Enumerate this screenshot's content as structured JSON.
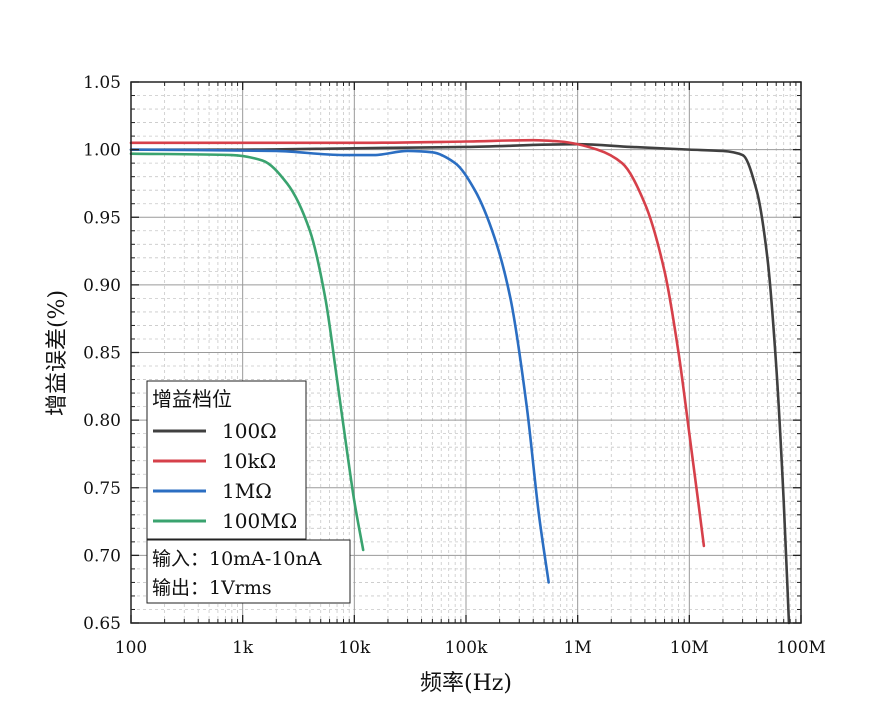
{
  "chart_data": {
    "type": "line",
    "xscale": "log",
    "xlim": [
      100,
      100000000
    ],
    "ylim": [
      0.65,
      1.05
    ],
    "xlabel": "频率(Hz)",
    "ylabel": "增益误差(%)",
    "x_ticks": [
      {
        "value": 100,
        "label": "100"
      },
      {
        "value": 1000,
        "label": "1k"
      },
      {
        "value": 10000,
        "label": "10k"
      },
      {
        "value": 100000,
        "label": "100k"
      },
      {
        "value": 1000000,
        "label": "1M"
      },
      {
        "value": 10000000,
        "label": "10M"
      },
      {
        "value": 100000000,
        "label": "100M"
      }
    ],
    "y_ticks": [
      {
        "value": 0.65,
        "label": "0.65"
      },
      {
        "value": 0.7,
        "label": "0.70"
      },
      {
        "value": 0.75,
        "label": "0.75"
      },
      {
        "value": 0.8,
        "label": "0.80"
      },
      {
        "value": 0.85,
        "label": "0.85"
      },
      {
        "value": 0.9,
        "label": "0.90"
      },
      {
        "value": 0.95,
        "label": "0.95"
      },
      {
        "value": 1.0,
        "label": "1.00"
      },
      {
        "value": 1.05,
        "label": "1.05"
      }
    ],
    "grid": true,
    "legend": {
      "title": "增益档位",
      "position": "bottom-left"
    },
    "series": [
      {
        "name": "100Ω",
        "color": "#404040",
        "points": [
          [
            100,
            1.0
          ],
          [
            1000,
            1.0
          ],
          [
            10000,
            1.001
          ],
          [
            100000,
            1.002
          ],
          [
            1000000,
            1.004
          ],
          [
            3000000,
            1.002
          ],
          [
            10000000,
            1.0
          ],
          [
            20000000,
            0.999
          ],
          [
            30000000,
            0.996
          ],
          [
            40000000,
            0.97
          ],
          [
            50000000,
            0.92
          ],
          [
            60000000,
            0.84
          ],
          [
            70000000,
            0.74
          ],
          [
            78000000,
            0.65
          ]
        ]
      },
      {
        "name": "10kΩ",
        "color": "#d6404a",
        "points": [
          [
            100,
            1.005
          ],
          [
            1000,
            1.005
          ],
          [
            10000,
            1.005
          ],
          [
            100000,
            1.006
          ],
          [
            400000,
            1.007
          ],
          [
            700000,
            1.006
          ],
          [
            1500000,
            1.0
          ],
          [
            2500000,
            0.99
          ],
          [
            4000000,
            0.96
          ],
          [
            6000000,
            0.91
          ],
          [
            8000000,
            0.85
          ],
          [
            10000000,
            0.79
          ],
          [
            12000000,
            0.74
          ],
          [
            13500000,
            0.707
          ]
        ]
      },
      {
        "name": "1MΩ",
        "color": "#2b6ec2",
        "points": [
          [
            100,
            1.0
          ],
          [
            2000,
            0.999
          ],
          [
            8000,
            0.996
          ],
          [
            15000,
            0.996
          ],
          [
            30000,
            0.999
          ],
          [
            50000,
            0.998
          ],
          [
            80000,
            0.99
          ],
          [
            120000,
            0.97
          ],
          [
            180000,
            0.935
          ],
          [
            250000,
            0.89
          ],
          [
            350000,
            0.81
          ],
          [
            450000,
            0.73
          ],
          [
            550000,
            0.68
          ]
        ]
      },
      {
        "name": "100MΩ",
        "color": "#3aa36f",
        "points": [
          [
            100,
            0.997
          ],
          [
            800,
            0.996
          ],
          [
            1500,
            0.992
          ],
          [
            2500,
            0.975
          ],
          [
            4000,
            0.94
          ],
          [
            5500,
            0.89
          ],
          [
            7000,
            0.83
          ],
          [
            8500,
            0.78
          ],
          [
            10000,
            0.74
          ],
          [
            12000,
            0.704
          ]
        ]
      }
    ]
  },
  "note": {
    "line1": "输入：10mA-10nA",
    "line2": "输出：1Vrms"
  }
}
